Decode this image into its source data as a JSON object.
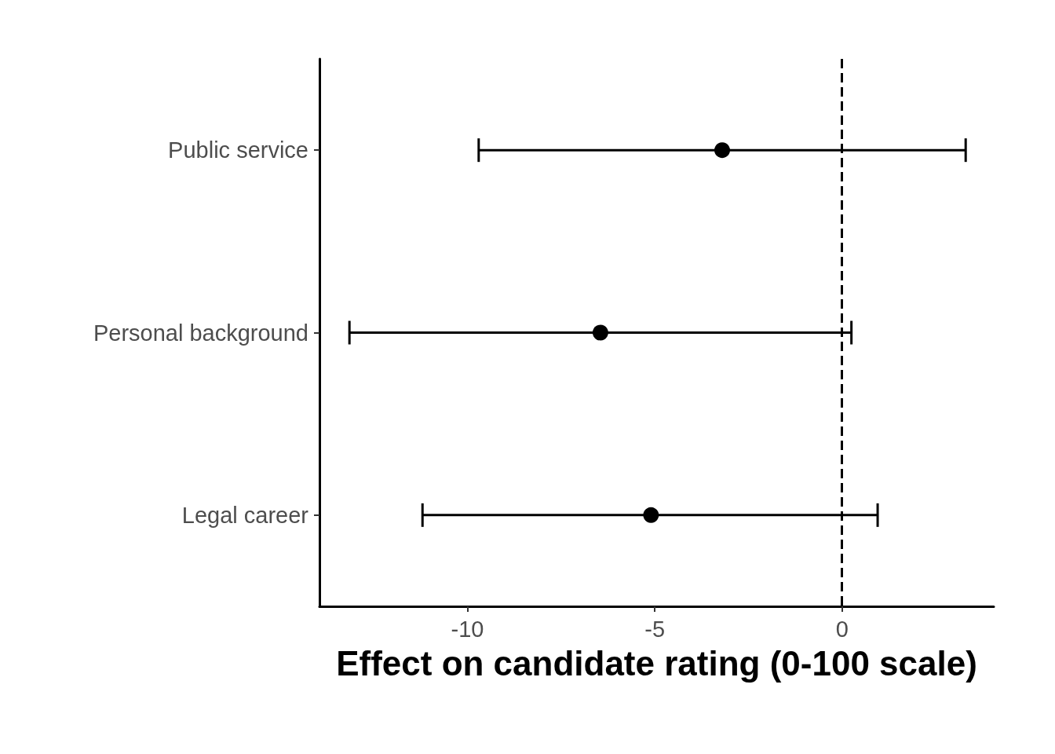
{
  "chart_data": {
    "type": "scatter",
    "orientation": "horizontal",
    "xlabel": "Effect on candidate rating (0-100 scale)",
    "categories": [
      "Public service",
      "Personal background",
      "Legal career"
    ],
    "values": [
      -3.2,
      -6.45,
      -5.1
    ],
    "errors": [
      [
        -9.7,
        3.3
      ],
      [
        -13.15,
        0.25
      ],
      [
        -11.2,
        0.95
      ]
    ],
    "color": "#000000",
    "marker": "circle",
    "xlim": [
      -13.95,
      4.05
    ],
    "xticks": [
      -10,
      -5,
      0
    ],
    "ref_lines": [
      {
        "axis": "x",
        "value": 0,
        "line_style": "dashed",
        "color": "#000000"
      }
    ],
    "grid": false
  }
}
